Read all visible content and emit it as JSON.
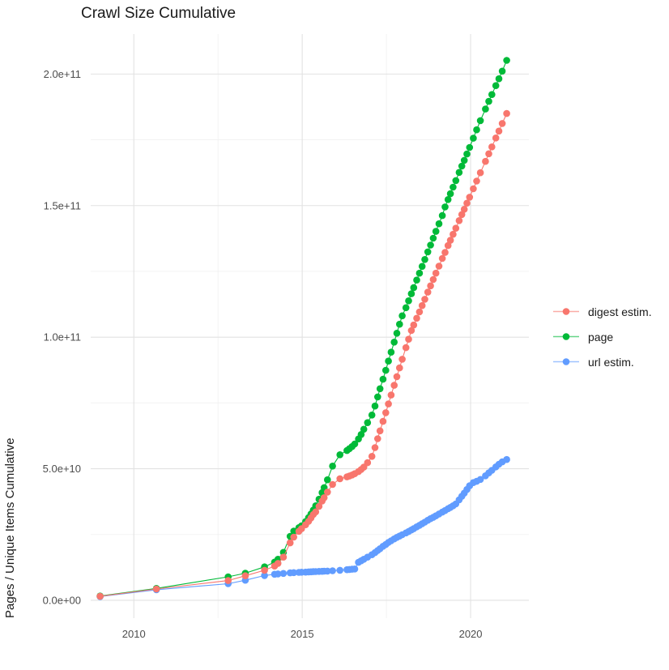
{
  "chart_data": {
    "type": "line",
    "title": "Crawl Size Cumulative",
    "ylabel": "Pages / Unique Items Cumulative",
    "xlabel": "",
    "legend_position": "right",
    "grid": "major and minor gridlines, white panel background",
    "colors": {
      "background": "#FFFFFF",
      "grid_major": "#E2E2E2",
      "grid_minor": "#F0F0F0",
      "tick_label": "#4D4D4D",
      "text": "#1A1A1A"
    },
    "xlim": [
      2008.72,
      2021.73
    ],
    "ylim_e9": [
      -6.8,
      215.2
    ],
    "value_unit_note": "all series values below are in units of 1e9 (billions)",
    "xticks": {
      "values": [
        2010,
        2015,
        2020
      ],
      "labels": [
        "2010",
        "2015",
        "2020"
      ]
    },
    "yticks": {
      "values_e9": [
        0,
        50,
        100,
        150,
        200
      ],
      "labels": [
        "0.0e+00",
        "5.0e+10",
        "1.0e+11",
        "1.5e+11",
        "2.0e+11"
      ]
    },
    "x_minor": [
      2012.5,
      2017.5
    ],
    "y_minor_e9": [
      25,
      75,
      125,
      175
    ],
    "x_years": [
      2009.0,
      2010.67,
      2012.8,
      2013.31,
      2013.88,
      2014.18,
      2014.28,
      2014.44,
      2014.64,
      2014.75,
      2014.9,
      2014.98,
      2015.1,
      2015.19,
      2015.26,
      2015.33,
      2015.4,
      2015.5,
      2015.59,
      2015.65,
      2015.75,
      2015.9,
      2016.12,
      2016.33,
      2016.4,
      2016.48,
      2016.56,
      2016.67,
      2016.75,
      2016.83,
      2016.94,
      2017.07,
      2017.16,
      2017.24,
      2017.31,
      2017.4,
      2017.48,
      2017.56,
      2017.64,
      2017.73,
      2017.81,
      2017.89,
      2017.97,
      2018.08,
      2018.16,
      2018.24,
      2018.31,
      2018.4,
      2018.48,
      2018.56,
      2018.64,
      2018.73,
      2018.81,
      2018.89,
      2018.97,
      2019.06,
      2019.16,
      2019.24,
      2019.33,
      2019.4,
      2019.48,
      2019.56,
      2019.66,
      2019.74,
      2019.81,
      2019.89,
      2019.97,
      2020.08,
      2020.18,
      2020.29,
      2020.44,
      2020.54,
      2020.63,
      2020.75,
      2020.84,
      2020.94,
      2021.07
    ],
    "series": [
      {
        "name": "digest estim.",
        "color": "#F8766D",
        "values_e9": [
          1.5,
          4.3,
          7.5,
          9.3,
          11.4,
          13.0,
          14.0,
          16.4,
          21.8,
          24.0,
          26.2,
          27.2,
          28.7,
          30.0,
          31.3,
          32.6,
          33.6,
          35.7,
          37.7,
          39.0,
          41.1,
          44.0,
          46.2,
          46.9,
          47.2,
          47.6,
          48.1,
          48.9,
          49.7,
          50.6,
          52.3,
          54.7,
          58.0,
          61.4,
          64.4,
          68.0,
          71.3,
          74.6,
          78.0,
          81.7,
          85.0,
          88.3,
          91.6,
          96.0,
          99.2,
          102.5,
          104.6,
          107.2,
          109.6,
          112.0,
          114.4,
          117.1,
          119.5,
          121.9,
          124.3,
          127.0,
          129.9,
          132.2,
          134.8,
          136.8,
          139.1,
          141.4,
          144.3,
          146.6,
          148.6,
          150.9,
          153.2,
          156.4,
          159.3,
          162.5,
          166.8,
          169.7,
          172.3,
          175.7,
          178.3,
          181.2,
          185.0
        ]
      },
      {
        "name": "page",
        "color": "#00BA38",
        "values_e9": [
          1.6,
          4.5,
          8.9,
          10.3,
          12.7,
          14.5,
          15.6,
          18.2,
          24.3,
          26.3,
          27.6,
          28.3,
          29.9,
          31.4,
          32.8,
          34.3,
          35.9,
          38.4,
          40.9,
          42.8,
          45.8,
          51.0,
          55.3,
          56.9,
          57.6,
          58.4,
          59.4,
          61.3,
          63.0,
          65.0,
          67.5,
          70.4,
          73.8,
          77.3,
          80.4,
          84.0,
          87.4,
          90.9,
          94.3,
          98.1,
          101.5,
          104.9,
          108.1,
          111.2,
          113.8,
          116.5,
          118.8,
          121.7,
          124.3,
          126.9,
          129.5,
          132.4,
          135.0,
          137.6,
          140.2,
          143.1,
          146.2,
          149.5,
          152.3,
          154.5,
          157.0,
          159.5,
          162.6,
          165.0,
          167.2,
          169.6,
          172.1,
          175.6,
          178.8,
          182.3,
          186.7,
          189.6,
          192.2,
          195.6,
          198.2,
          201.1,
          205.2
        ]
      },
      {
        "name": "url estim.",
        "color": "#619CFF",
        "values_e9": [
          1.4,
          4.0,
          6.3,
          7.6,
          9.4,
          9.9,
          10.0,
          10.2,
          10.4,
          10.5,
          10.6,
          10.65,
          10.7,
          10.78,
          10.82,
          10.87,
          10.9,
          10.96,
          11.0,
          11.05,
          11.1,
          11.2,
          11.4,
          11.6,
          11.7,
          11.8,
          11.9,
          14.4,
          15.0,
          15.6,
          16.4,
          17.3,
          18.1,
          18.9,
          19.6,
          20.5,
          21.2,
          22.0,
          22.6,
          23.3,
          23.9,
          24.4,
          24.9,
          25.6,
          26.1,
          26.7,
          27.2,
          27.9,
          28.5,
          29.1,
          29.7,
          30.4,
          31.0,
          31.5,
          32.1,
          32.8,
          33.5,
          34.1,
          34.8,
          35.3,
          35.9,
          36.6,
          38.2,
          39.5,
          40.7,
          42.1,
          43.5,
          44.7,
          45.2,
          45.9,
          47.3,
          48.4,
          49.4,
          50.7,
          51.7,
          52.6,
          53.5
        ]
      }
    ]
  }
}
